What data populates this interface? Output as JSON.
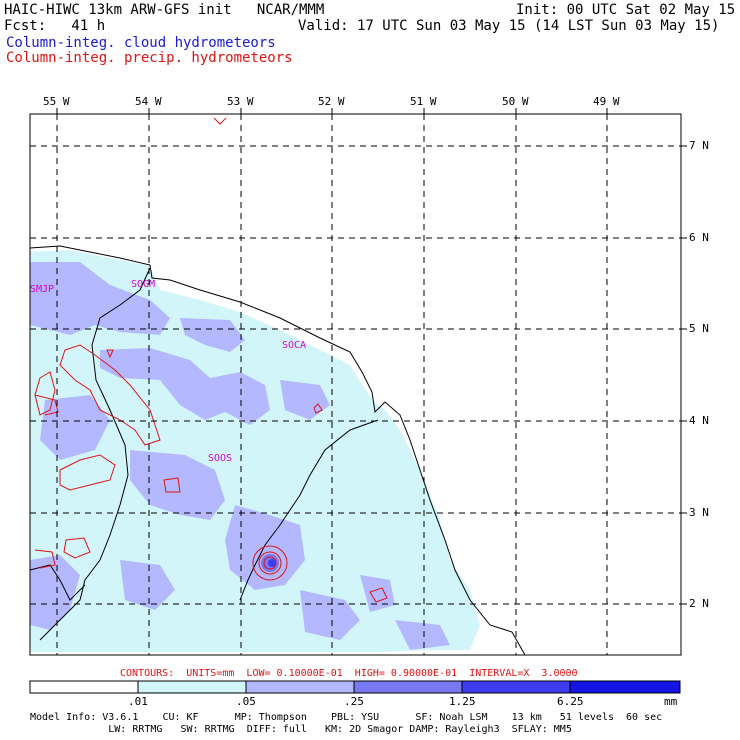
{
  "header": {
    "model_line": "HAIC-HIWC 13km ARW-GFS init   NCAR/MMM",
    "fcst_line": "Fcst:   41 h",
    "init_line": "Init: 00 UTC Sat 02 May 15",
    "valid_line": "Valid: 17 UTC Sun 03 May 15 (14 LST Sun 03 May 15)",
    "field1": "Column-integ. cloud hydrometeors",
    "field2": "Column-integ. precip. hydrometeors"
  },
  "map": {
    "lon_labels": [
      "55 W",
      "54 W",
      "53 W",
      "52 W",
      "51 W",
      "50 W",
      "49 W"
    ],
    "lat_labels": [
      "7 N",
      "6 N",
      "5 N",
      "4 N",
      "3 N",
      "2 N"
    ],
    "stations": [
      "SMJP",
      "SOGM",
      "SOCA",
      "SOOS"
    ]
  },
  "contour_note": "CONTOURS:  UNITS=mm  LOW= 0.10000E-01  HIGH= 0.90000E-01  INTERVAL=X  3.0000",
  "colorbar": {
    "ticks": [
      ".01",
      ".05",
      ".25",
      "1.25",
      "6.25"
    ],
    "unit": "mm",
    "colors": [
      "#ffffff",
      "#d2f5fa",
      "#b4b9ff",
      "#7878f0",
      "#3c3cf0",
      "#1414e6"
    ]
  },
  "model_info": {
    "line1": "Model Info: V3.6.1    CU: KF      MP: Thompson    PBL: YSU      SF: Noah LSM    13 km   51 levels  60 sec",
    "line2": "             LW: RRTMG   SW: RRTMG  DIFF: full   KM: 2D Smagor DAMP: Rayleigh3  SFLAY: MM5"
  }
}
